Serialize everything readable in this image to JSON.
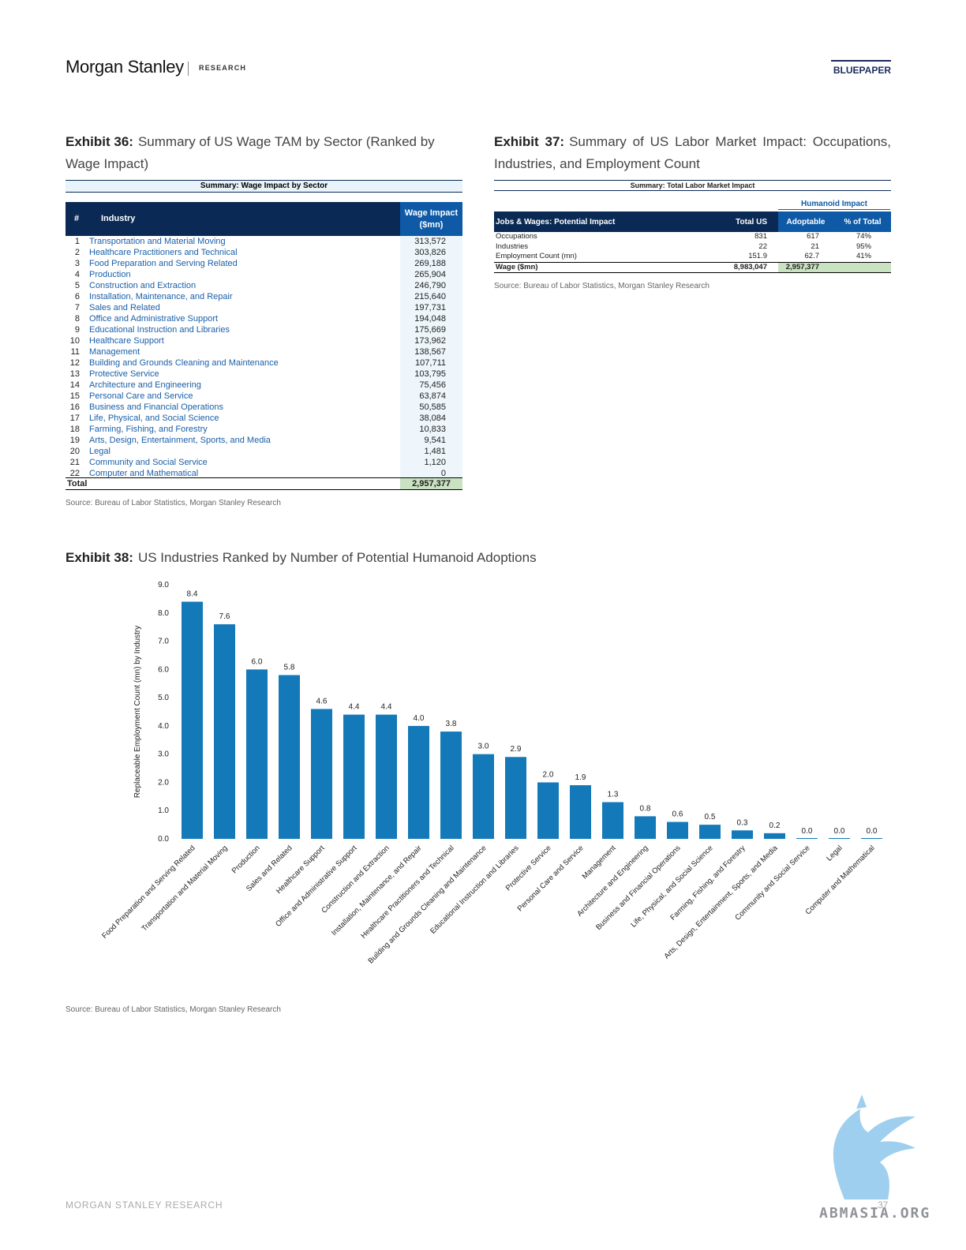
{
  "header": {
    "brand": "Morgan Stanley",
    "section": "RESEARCH",
    "doc_type": "BLUEPAPER"
  },
  "exhibit36": {
    "label": "Exhibit 36:",
    "title": "Summary of US Wage TAM by Sector (Ranked by Wage Impact)",
    "banner": "Summary: Wage Impact by Sector",
    "col_num": "#",
    "col_industry": "Industry",
    "col_wage": "Wage Impact ($mn)",
    "rows": [
      {
        "n": "1",
        "industry": "Transportation and Material Moving",
        "value": "313,572"
      },
      {
        "n": "2",
        "industry": "Healthcare Practitioners and Technical",
        "value": "303,826"
      },
      {
        "n": "3",
        "industry": "Food Preparation and Serving Related",
        "value": "269,188"
      },
      {
        "n": "4",
        "industry": "Production",
        "value": "265,904"
      },
      {
        "n": "5",
        "industry": "Construction and Extraction",
        "value": "246,790"
      },
      {
        "n": "6",
        "industry": "Installation, Maintenance, and Repair",
        "value": "215,640"
      },
      {
        "n": "7",
        "industry": "Sales and Related",
        "value": "197,731"
      },
      {
        "n": "8",
        "industry": "Office and Administrative Support",
        "value": "194,048"
      },
      {
        "n": "9",
        "industry": "Educational Instruction and Libraries",
        "value": "175,669"
      },
      {
        "n": "10",
        "industry": "Healthcare Support",
        "value": "173,962"
      },
      {
        "n": "11",
        "industry": "Management",
        "value": "138,567"
      },
      {
        "n": "12",
        "industry": "Building and Grounds Cleaning and Maintenance",
        "value": "107,711"
      },
      {
        "n": "13",
        "industry": "Protective Service",
        "value": "103,795"
      },
      {
        "n": "14",
        "industry": "Architecture and Engineering",
        "value": "75,456"
      },
      {
        "n": "15",
        "industry": "Personal Care and Service",
        "value": "63,874"
      },
      {
        "n": "16",
        "industry": "Business and Financial Operations",
        "value": "50,585"
      },
      {
        "n": "17",
        "industry": "Life, Physical, and Social Science",
        "value": "38,084"
      },
      {
        "n": "18",
        "industry": "Farming, Fishing, and Forestry",
        "value": "10,833"
      },
      {
        "n": "19",
        "industry": "Arts, Design, Entertainment, Sports, and Media",
        "value": "9,541"
      },
      {
        "n": "20",
        "industry": "Legal",
        "value": "1,481"
      },
      {
        "n": "21",
        "industry": "Community and Social Service",
        "value": "1,120"
      },
      {
        "n": "22",
        "industry": "Computer and Mathematical",
        "value": "0"
      }
    ],
    "total_label": "Total",
    "total_value": "2,957,377",
    "source": "Source: Bureau of Labor Statistics, Morgan Stanley Research"
  },
  "exhibit37": {
    "label": "Exhibit 37:",
    "title": "Summary of US Labor Market Impact: Occupations, Industries, and Employment Count",
    "banner": "Summary: Total Labor Market Impact",
    "humanoid_header": "Humanoid Impact",
    "col_label": "Jobs & Wages: Potential Impact",
    "col_total": "Total US",
    "col_adoptable": "Adoptable",
    "col_pct": "% of Total",
    "rows": [
      {
        "label": "Occupations",
        "total": "831",
        "adoptable": "617",
        "pct": "74%"
      },
      {
        "label": "Industries",
        "total": "22",
        "adoptable": "21",
        "pct": "95%"
      },
      {
        "label": "Employment Count (mn)",
        "total": "151.9",
        "adoptable": "62.7",
        "pct": "41%"
      }
    ],
    "wage_row": {
      "label": "Wage ($mn)",
      "total": "8,983,047",
      "adoptable": "2,957,377"
    },
    "source": "Source: Bureau of Labor Statistics, Morgan Stanley Research"
  },
  "exhibit38": {
    "label": "Exhibit 38:",
    "title": "US Industries Ranked by Number of Potential Humanoid Adoptions",
    "source": "Source: Bureau of Labor Statistics, Morgan Stanley Research"
  },
  "chart_data": {
    "type": "bar",
    "title": "",
    "xlabel": "",
    "ylabel": "Replaceable Employment Count (mn) by Industry",
    "ylim": [
      0,
      9
    ],
    "yticks": [
      "0.0",
      "1.0",
      "2.0",
      "3.0",
      "4.0",
      "5.0",
      "6.0",
      "7.0",
      "8.0",
      "9.0"
    ],
    "grid": false,
    "bar_color": "#1479b8",
    "categories": [
      "Food Preparation and Serving Related",
      "Transportation and Material Moving",
      "Production",
      "Sales and Related",
      "Healthcare Support",
      "Office and Administrative Support",
      "Construction and Extraction",
      "Installation, Maintenance, and Repair",
      "Healthcare Practitioners and Technical",
      "Building and Grounds Cleaning and Maintenance",
      "Educational Instruction and Libraries",
      "Protective Service",
      "Personal Care and Service",
      "Management",
      "Architecture and Engineering",
      "Business and Financial Operations",
      "Life, Physical, and Social Science",
      "Farming, Fishing, and Forestry",
      "Arts, Design, Entertainment, Sports, and Media",
      "Community and Social Service",
      "Legal",
      "Computer and Mathematical"
    ],
    "values": [
      8.4,
      7.6,
      6.0,
      5.8,
      4.6,
      4.4,
      4.4,
      4.0,
      3.8,
      3.0,
      2.9,
      2.0,
      1.9,
      1.3,
      0.8,
      0.6,
      0.5,
      0.3,
      0.2,
      0.0,
      0.0,
      0.0
    ],
    "labels": [
      "8.4",
      "7.6",
      "6.0",
      "5.8",
      "4.6",
      "4.4",
      "4.4",
      "4.0",
      "3.8",
      "3.0",
      "2.9",
      "2.0",
      "1.9",
      "1.3",
      "0.8",
      "0.6",
      "0.5",
      "0.3",
      "0.2",
      "0.0",
      "0.0",
      "0.0"
    ]
  },
  "footer": {
    "left": "MORGAN STANLEY RESEARCH",
    "page": "37",
    "watermark": "ABMASIA.ORG"
  }
}
